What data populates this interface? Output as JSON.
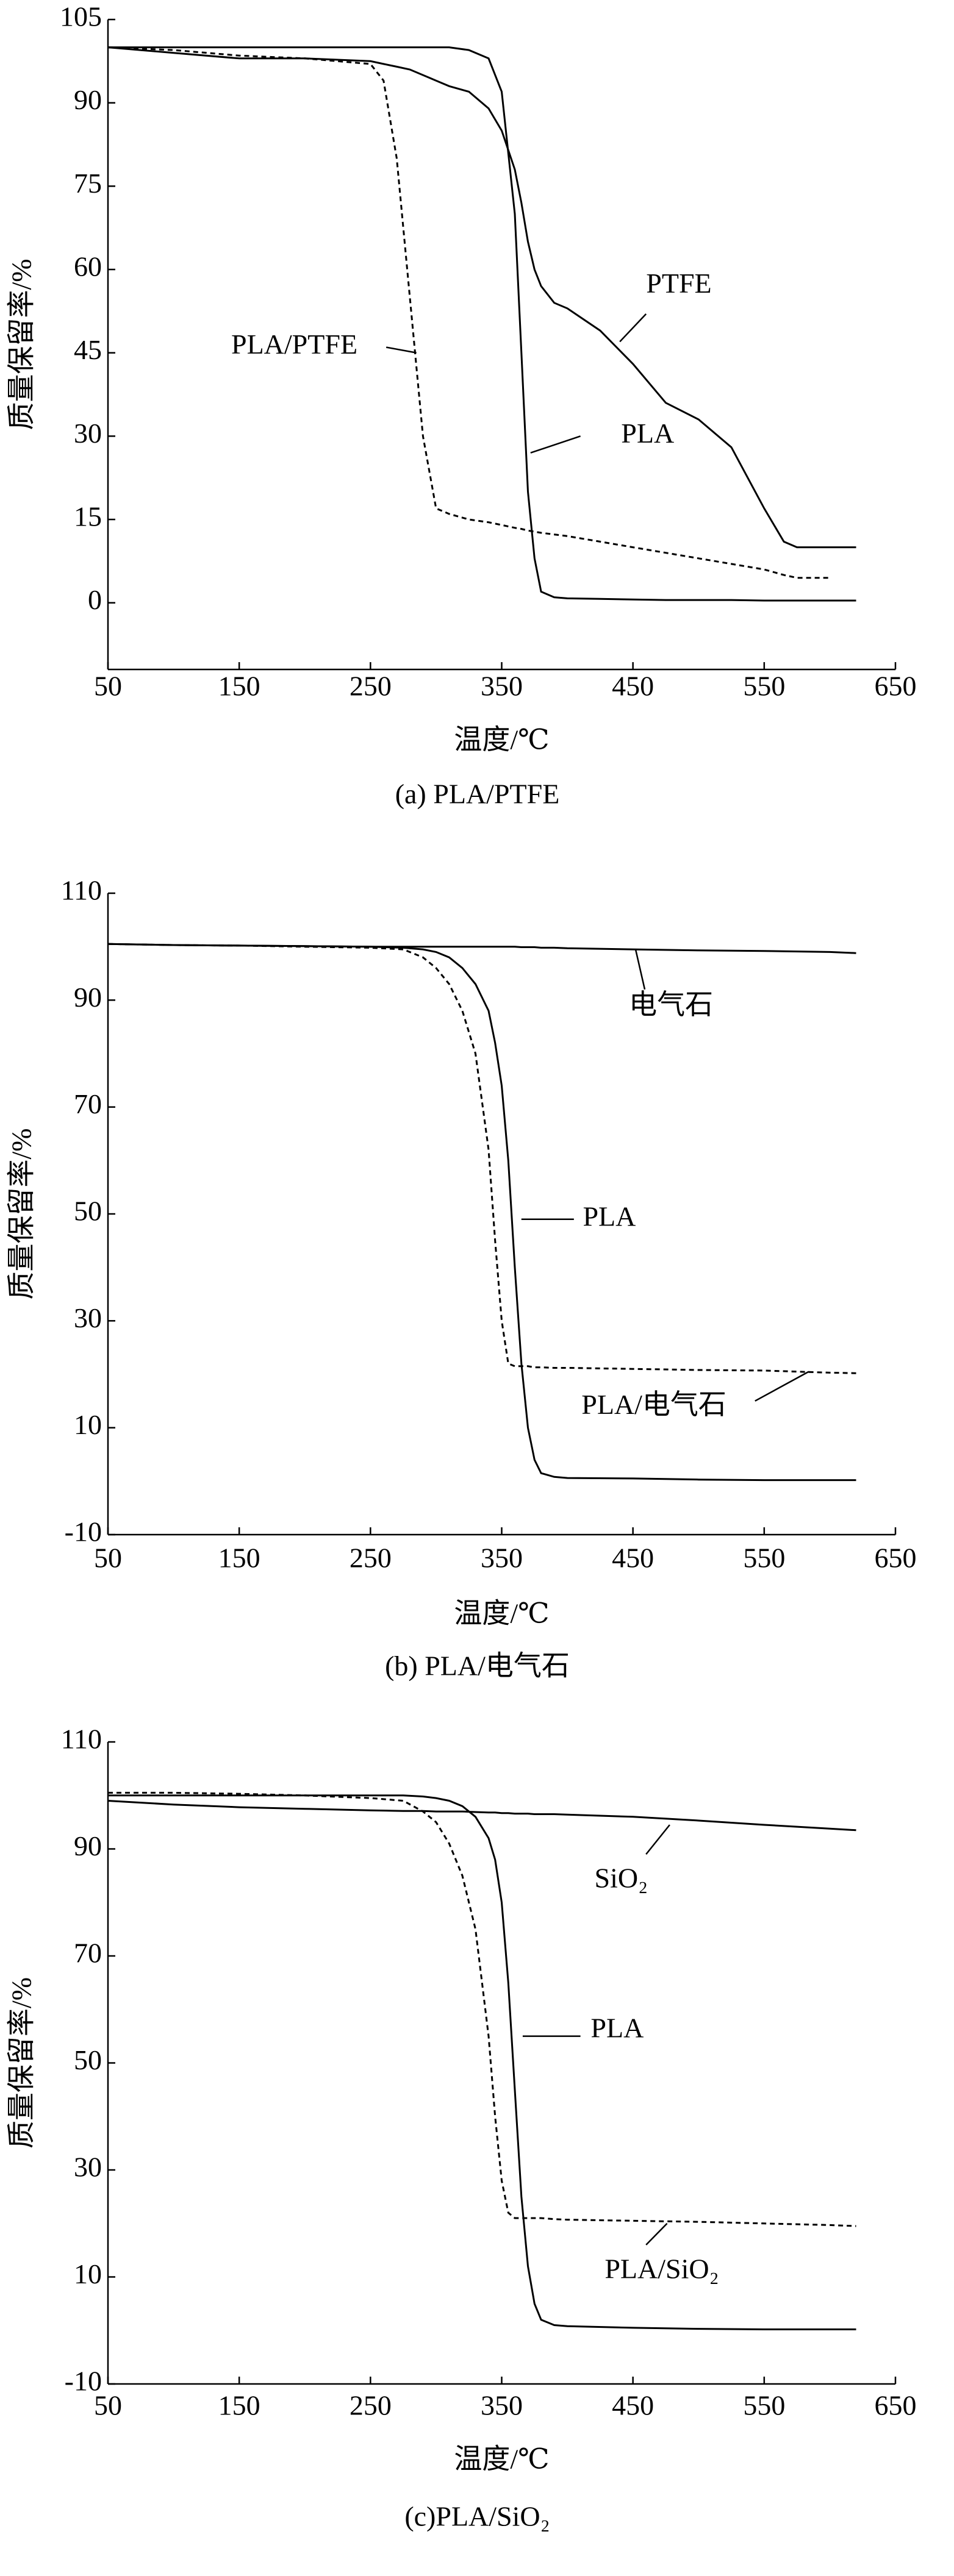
{
  "chart_data": [
    {
      "type": "line",
      "caption": "(a) PLA/PTFE",
      "x_label": "温度/℃",
      "y_label": "质量保留率/%",
      "x": [
        50,
        100,
        150,
        200,
        250,
        260,
        270,
        280,
        290,
        300,
        310,
        325,
        340,
        350,
        360,
        365,
        370,
        375,
        380,
        390,
        400,
        425,
        450,
        475,
        500,
        525,
        550,
        565,
        575,
        600,
        620
      ],
      "series": [
        {
          "name": "PLA",
          "color": "#000000",
          "dashed": false,
          "values": [
            100,
            100,
            100,
            100,
            100,
            100,
            100,
            100,
            100,
            100,
            100,
            99.5,
            98,
            92,
            70,
            45,
            20,
            8,
            2,
            1,
            0.8,
            0.7,
            0.6,
            0.5,
            0.5,
            0.5,
            0.4,
            0.4,
            0.4,
            0.4,
            0.4
          ]
        },
        {
          "name": "PTFE",
          "color": "#000000",
          "dashed": false,
          "values": [
            100,
            99,
            98,
            98,
            97.5,
            97,
            96.5,
            96,
            95,
            94,
            93,
            92,
            89,
            85,
            78,
            72,
            65,
            60,
            57,
            54,
            53,
            49,
            43,
            36,
            33,
            28,
            17,
            11,
            10,
            10,
            10
          ]
        },
        {
          "name": "PLA/PTFE",
          "color": "#000000",
          "dashed": true,
          "values": [
            100,
            99.5,
            98.5,
            98,
            97,
            94,
            80,
            55,
            30,
            17,
            16,
            15,
            14.5,
            14,
            13.5,
            13.3,
            13,
            12.8,
            12.6,
            12.3,
            12,
            11,
            10,
            9,
            8,
            7,
            6,
            5,
            4.5,
            4.5,
            null
          ]
        }
      ],
      "xlim": [
        50,
        650
      ],
      "xticks": [
        50,
        150,
        250,
        350,
        450,
        550,
        650
      ],
      "ylim": [
        -12,
        105
      ],
      "yticks": [
        0,
        15,
        30,
        45,
        60,
        75,
        90,
        105
      ]
    },
    {
      "type": "line",
      "caption": "(b) PLA/电气石",
      "x_label": "温度/℃",
      "y_label": "质量保留率/%",
      "x": [
        50,
        100,
        150,
        200,
        250,
        275,
        290,
        300,
        310,
        320,
        330,
        340,
        345,
        350,
        355,
        360,
        365,
        370,
        375,
        380,
        390,
        400,
        450,
        500,
        550,
        600,
        620
      ],
      "series": [
        {
          "name": "电气石",
          "color": "#000000",
          "dashed": false,
          "values": [
            100.5,
            100.3,
            100.2,
            100.1,
            100,
            100,
            100,
            100,
            100,
            100,
            100,
            100,
            100,
            100,
            100,
            100,
            99.9,
            99.9,
            99.9,
            99.8,
            99.8,
            99.7,
            99.5,
            99.3,
            99.2,
            99,
            98.8
          ]
        },
        {
          "name": "PLA",
          "color": "#000000",
          "dashed": false,
          "values": [
            100.5,
            100.3,
            100.2,
            100.1,
            100,
            99.8,
            99.5,
            99,
            98,
            96,
            93,
            88,
            82,
            74,
            60,
            40,
            22,
            10,
            4,
            1.5,
            0.8,
            0.6,
            0.5,
            0.3,
            0.2,
            0.2,
            0.2
          ]
        },
        {
          "name": "PLA/电气石",
          "color": "#000000",
          "dashed": true,
          "values": [
            100.5,
            100.3,
            100.2,
            100,
            99.8,
            99.5,
            98,
            96,
            93,
            88,
            80,
            62,
            45,
            30,
            22,
            21.5,
            21.5,
            21.5,
            21.3,
            21.3,
            21.2,
            21.2,
            21,
            20.8,
            20.7,
            20.3,
            20.2
          ]
        }
      ],
      "xlim": [
        50,
        650
      ],
      "xticks": [
        50,
        150,
        250,
        350,
        450,
        550,
        650
      ],
      "ylim": [
        -10,
        110
      ],
      "yticks": [
        -10,
        10,
        30,
        50,
        70,
        90,
        110
      ]
    },
    {
      "type": "line",
      "caption": "(c)PLA/SiO₂",
      "x_label": "温度/℃",
      "y_label": "质量保留率/%",
      "x": [
        50,
        100,
        150,
        200,
        250,
        275,
        290,
        300,
        310,
        320,
        330,
        340,
        345,
        350,
        355,
        360,
        365,
        370,
        375,
        380,
        390,
        400,
        450,
        500,
        550,
        600,
        620
      ],
      "series": [
        {
          "name": "SiO₂",
          "color": "#000000",
          "dashed": false,
          "values": [
            99,
            98.3,
            97.8,
            97.5,
            97.2,
            97.1,
            97.1,
            97,
            97,
            97,
            96.9,
            96.8,
            96.8,
            96.7,
            96.7,
            96.6,
            96.6,
            96.6,
            96.5,
            96.5,
            96.5,
            96.4,
            96,
            95.3,
            94.5,
            93.8,
            93.5
          ]
        },
        {
          "name": "PLA",
          "color": "#000000",
          "dashed": false,
          "values": [
            100,
            100,
            100,
            100,
            100,
            100,
            99.8,
            99.5,
            99,
            98,
            96,
            92,
            88,
            80,
            65,
            45,
            25,
            12,
            5,
            2,
            1,
            0.8,
            0.5,
            0.3,
            0.2,
            0.2,
            0.2
          ]
        },
        {
          "name": "PLA/SiO₂",
          "color": "#000000",
          "dashed": true,
          "values": [
            100.5,
            100.5,
            100.3,
            100,
            99.5,
            99,
            97,
            95,
            91,
            85,
            75,
            55,
            40,
            28,
            22,
            21,
            21,
            21,
            21,
            21,
            20.8,
            20.7,
            20.5,
            20.3,
            20,
            19.7,
            19.5
          ]
        }
      ],
      "xlim": [
        50,
        650
      ],
      "xticks": [
        50,
        150,
        250,
        350,
        450,
        550,
        650
      ],
      "ylim": [
        -10,
        110
      ],
      "yticks": [
        -10,
        10,
        30,
        50,
        70,
        90,
        110
      ]
    }
  ]
}
